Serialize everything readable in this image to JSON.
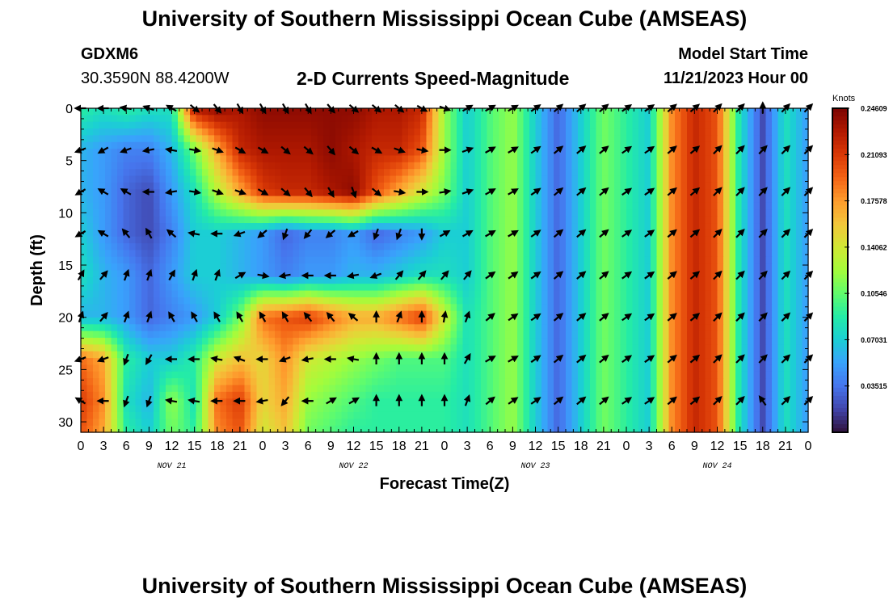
{
  "page": {
    "title_top": "University of Southern Mississippi Ocean Cube (AMSEAS)",
    "title_bottom": "University of Southern Mississippi Ocean Cube (AMSEAS)",
    "station_id": "GDXM6",
    "station_coords": "30.3590N  88.4200W",
    "plot_subtitle": "2-D Currents Speed-Magnitude",
    "model_start_label": "Model Start Time",
    "model_start_value": "11/21/2023 Hour 00"
  },
  "colors": {
    "background": "#ffffff",
    "colormap": [
      "#30123b",
      "#4145ab",
      "#4675ed",
      "#39a2fc",
      "#1bcfd4",
      "#24eca6",
      "#61fc6c",
      "#a4fc3b",
      "#d1e834",
      "#f3c63a",
      "#fe9b2d",
      "#f36315",
      "#d93806",
      "#b11901",
      "#7a0402"
    ]
  },
  "chart_data": {
    "type": "heatmap",
    "title": "2-D Currents Speed-Magnitude",
    "xlabel": "Forecast Time(Z)",
    "ylabel": "Depth (ft)",
    "x_range_hours": [
      0,
      96
    ],
    "y_range_ft": [
      0,
      31
    ],
    "x_tick_labels": [
      "0",
      "3",
      "6",
      "9",
      "12",
      "15",
      "18",
      "21",
      "0",
      "3",
      "6",
      "9",
      "12",
      "15",
      "18",
      "21",
      "0",
      "3",
      "6",
      "9",
      "12",
      "15",
      "18",
      "21",
      "0",
      "3",
      "6",
      "9",
      "12",
      "15",
      "18",
      "21",
      "0"
    ],
    "y_ticks": [
      0,
      5,
      10,
      15,
      20,
      25,
      30
    ],
    "y_tick_labels": [
      "0",
      "5",
      "10",
      "15",
      "20",
      "25",
      "30"
    ],
    "date_labels": [
      {
        "hour": 12,
        "label": "NOV 21"
      },
      {
        "hour": 36,
        "label": "NOV 22"
      },
      {
        "hour": 60,
        "label": "NOV 23"
      },
      {
        "hour": 84,
        "label": "NOV 24"
      }
    ],
    "colorbar": {
      "unit": "Knots",
      "min": 0,
      "max": 0.2461,
      "tick_values": [
        0.24609,
        0.21093,
        0.17578,
        0.14062,
        0.10546,
        0.07031,
        0.03515
      ],
      "tick_labels": [
        "0.24609",
        "0.21093",
        "0.17578",
        "0.14062",
        "0.10546",
        "0.07031",
        "0.03515"
      ]
    },
    "time_hours": [
      0,
      3,
      6,
      9,
      12,
      15,
      18,
      21,
      24,
      27,
      30,
      33,
      36,
      39,
      42,
      45,
      48,
      51,
      54,
      57,
      60,
      63,
      66,
      69,
      72,
      75,
      78,
      81,
      84,
      87,
      90,
      93,
      96
    ],
    "depths_ft": [
      0,
      4,
      8,
      12,
      16,
      20,
      24,
      28,
      31
    ],
    "speed_knots": [
      [
        0.09,
        0.08,
        0.09,
        0.08,
        0.08,
        0.23,
        0.24,
        0.23,
        0.24,
        0.24,
        0.24,
        0.24,
        0.24,
        0.23,
        0.23,
        0.22,
        0.12,
        0.07,
        0.1,
        0.12,
        0.07,
        0.03,
        0.07,
        0.11,
        0.09,
        0.07,
        0.18,
        0.22,
        0.2,
        0.08,
        0.02,
        0.08,
        0.05
      ],
      [
        0.06,
        0.05,
        0.04,
        0.04,
        0.06,
        0.11,
        0.17,
        0.22,
        0.23,
        0.23,
        0.23,
        0.24,
        0.23,
        0.22,
        0.22,
        0.2,
        0.12,
        0.07,
        0.1,
        0.12,
        0.07,
        0.03,
        0.07,
        0.11,
        0.09,
        0.07,
        0.18,
        0.22,
        0.2,
        0.08,
        0.02,
        0.08,
        0.05
      ],
      [
        0.06,
        0.05,
        0.03,
        0.02,
        0.05,
        0.08,
        0.13,
        0.17,
        0.21,
        0.22,
        0.22,
        0.23,
        0.24,
        0.2,
        0.17,
        0.14,
        0.11,
        0.07,
        0.1,
        0.12,
        0.07,
        0.03,
        0.07,
        0.11,
        0.09,
        0.07,
        0.18,
        0.22,
        0.2,
        0.08,
        0.02,
        0.08,
        0.05
      ],
      [
        0.07,
        0.05,
        0.03,
        0.02,
        0.04,
        0.07,
        0.07,
        0.06,
        0.05,
        0.03,
        0.04,
        0.04,
        0.05,
        0.03,
        0.04,
        0.05,
        0.07,
        0.07,
        0.1,
        0.12,
        0.07,
        0.03,
        0.07,
        0.11,
        0.09,
        0.07,
        0.18,
        0.22,
        0.2,
        0.08,
        0.02,
        0.08,
        0.05
      ],
      [
        0.08,
        0.06,
        0.05,
        0.03,
        0.05,
        0.07,
        0.07,
        0.06,
        0.05,
        0.04,
        0.05,
        0.05,
        0.06,
        0.06,
        0.07,
        0.08,
        0.08,
        0.07,
        0.1,
        0.12,
        0.07,
        0.03,
        0.07,
        0.11,
        0.09,
        0.07,
        0.18,
        0.22,
        0.2,
        0.08,
        0.02,
        0.08,
        0.05
      ],
      [
        0.06,
        0.06,
        0.05,
        0.03,
        0.04,
        0.05,
        0.07,
        0.11,
        0.19,
        0.2,
        0.21,
        0.19,
        0.17,
        0.17,
        0.19,
        0.21,
        0.14,
        0.08,
        0.1,
        0.12,
        0.07,
        0.03,
        0.07,
        0.11,
        0.09,
        0.07,
        0.18,
        0.22,
        0.2,
        0.08,
        0.02,
        0.08,
        0.05
      ],
      [
        0.19,
        0.17,
        0.09,
        0.07,
        0.07,
        0.09,
        0.14,
        0.16,
        0.15,
        0.18,
        0.14,
        0.13,
        0.12,
        0.11,
        0.1,
        0.1,
        0.1,
        0.08,
        0.1,
        0.12,
        0.07,
        0.03,
        0.07,
        0.11,
        0.09,
        0.07,
        0.18,
        0.22,
        0.2,
        0.08,
        0.02,
        0.08,
        0.05
      ],
      [
        0.21,
        0.18,
        0.08,
        0.06,
        0.12,
        0.08,
        0.19,
        0.21,
        0.15,
        0.17,
        0.12,
        0.11,
        0.1,
        0.09,
        0.09,
        0.09,
        0.09,
        0.08,
        0.1,
        0.12,
        0.07,
        0.03,
        0.07,
        0.11,
        0.09,
        0.07,
        0.18,
        0.22,
        0.2,
        0.08,
        0.02,
        0.08,
        0.05
      ],
      [
        0.2,
        0.17,
        0.09,
        0.07,
        0.11,
        0.09,
        0.18,
        0.2,
        0.14,
        0.16,
        0.11,
        0.1,
        0.09,
        0.09,
        0.09,
        0.09,
        0.09,
        0.08,
        0.1,
        0.12,
        0.07,
        0.03,
        0.07,
        0.11,
        0.09,
        0.07,
        0.18,
        0.22,
        0.2,
        0.08,
        0.02,
        0.08,
        0.05
      ]
    ],
    "vector_depths_ft": [
      0,
      4,
      8,
      12,
      16,
      20,
      24,
      28
    ],
    "vector_directions_deg": [
      [
        270,
        270,
        280,
        290,
        300,
        130,
        140,
        150,
        150,
        150,
        150,
        140,
        130,
        130,
        130,
        120,
        110,
        60,
        60,
        60,
        55,
        50,
        50,
        50,
        55,
        55,
        50,
        50,
        45,
        45,
        0,
        45,
        45
      ],
      [
        250,
        240,
        250,
        260,
        280,
        100,
        110,
        120,
        120,
        130,
        130,
        140,
        130,
        120,
        110,
        100,
        90,
        70,
        60,
        60,
        55,
        50,
        50,
        50,
        55,
        55,
        50,
        50,
        45,
        45,
        45,
        45,
        45
      ],
      [
        240,
        300,
        300,
        270,
        260,
        100,
        110,
        110,
        120,
        130,
        140,
        150,
        160,
        130,
        100,
        90,
        80,
        70,
        60,
        60,
        55,
        50,
        50,
        50,
        55,
        55,
        50,
        50,
        45,
        45,
        45,
        45,
        45
      ],
      [
        240,
        300,
        320,
        330,
        310,
        280,
        270,
        250,
        230,
        200,
        220,
        230,
        240,
        200,
        200,
        180,
        60,
        60,
        60,
        60,
        55,
        50,
        50,
        50,
        55,
        55,
        50,
        50,
        45,
        45,
        45,
        45,
        45
      ],
      [
        30,
        40,
        20,
        20,
        30,
        20,
        20,
        60,
        100,
        260,
        270,
        270,
        260,
        250,
        40,
        40,
        40,
        40,
        55,
        55,
        55,
        50,
        50,
        50,
        55,
        55,
        50,
        50,
        45,
        45,
        45,
        45,
        45
      ],
      [
        20,
        40,
        20,
        20,
        330,
        330,
        330,
        330,
        330,
        330,
        320,
        320,
        310,
        0,
        20,
        0,
        10,
        20,
        50,
        55,
        55,
        50,
        50,
        50,
        55,
        55,
        50,
        50,
        45,
        45,
        45,
        45,
        45
      ],
      [
        250,
        250,
        200,
        210,
        270,
        270,
        280,
        290,
        270,
        250,
        260,
        270,
        280,
        0,
        0,
        0,
        0,
        30,
        60,
        60,
        55,
        50,
        50,
        50,
        55,
        55,
        50,
        50,
        45,
        45,
        45,
        45,
        45
      ],
      [
        300,
        270,
        200,
        200,
        280,
        280,
        270,
        270,
        260,
        220,
        270,
        60,
        60,
        0,
        0,
        0,
        0,
        20,
        50,
        55,
        55,
        50,
        50,
        50,
        55,
        55,
        50,
        50,
        45,
        45,
        325,
        45,
        45
      ]
    ]
  }
}
